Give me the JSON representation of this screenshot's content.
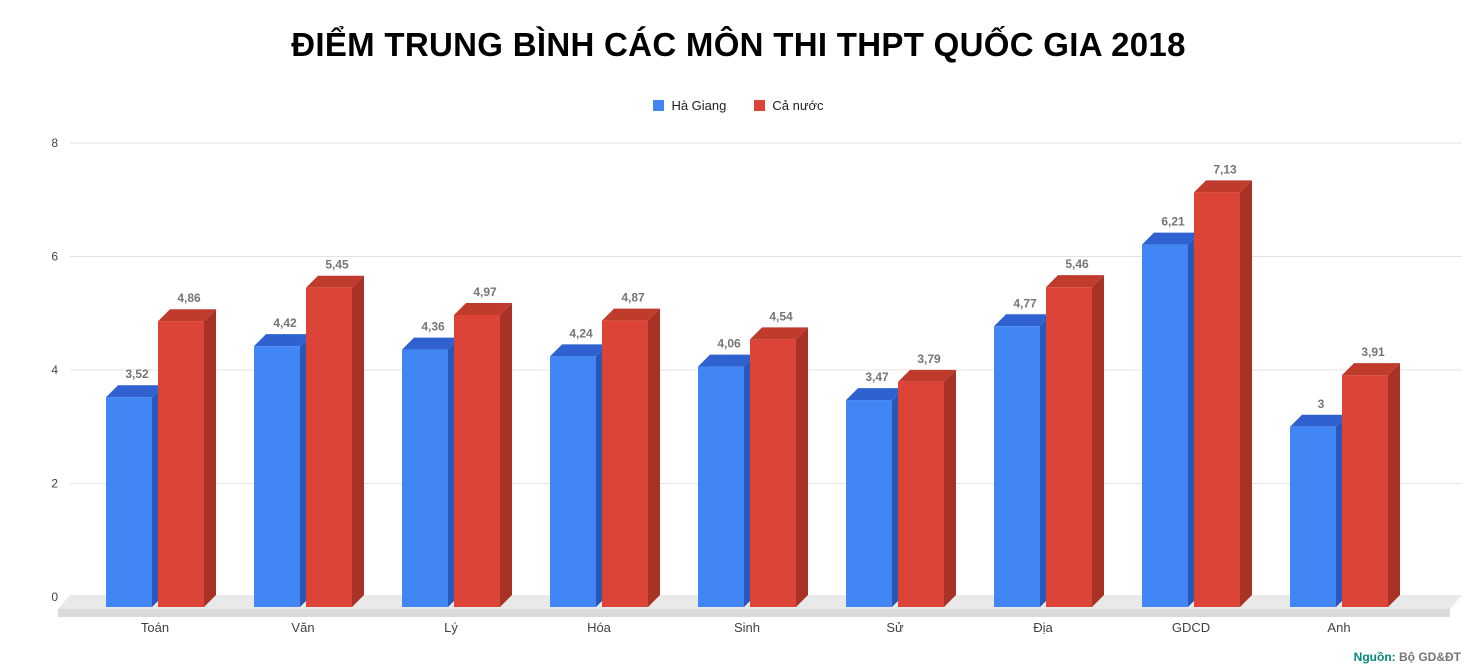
{
  "title": "ĐIỂM TRUNG BÌNH CÁC MÔN THI THPT QUỐC GIA 2018",
  "source": {
    "prefix": "Nguồn:",
    "text": "Bộ GD&ĐT"
  },
  "legend": [
    {
      "label": "Hà Giang",
      "color": "#4285f4"
    },
    {
      "label": "Cả nước",
      "color": "#db4437"
    }
  ],
  "colors": {
    "blue_front": "#4285f4",
    "blue_side": "#2a57b5",
    "blue_top": "#2f62d0",
    "red_front": "#db4437",
    "red_side": "#a93226",
    "red_top": "#bf3b2c",
    "gridline": "#e3e3e3",
    "floor_top": "#e9e9e9",
    "floor_front": "#dadada"
  },
  "chart_data": {
    "type": "bar",
    "title": "ĐIỂM TRUNG BÌNH CÁC MÔN THI THPT QUỐC GIA 2018",
    "xlabel": "",
    "ylabel": "",
    "ylim": [
      0,
      8
    ],
    "yticks": [
      0,
      2,
      4,
      6,
      8
    ],
    "grid": true,
    "legend_position": "top",
    "style_3d": true,
    "categories": [
      "Toán",
      "Văn",
      "Lý",
      "Hóa",
      "Sinh",
      "Sử",
      "Địa",
      "GDCD",
      "Anh"
    ],
    "series": [
      {
        "name": "Hà Giang",
        "color": "#4285f4",
        "side_color": "#2a57b5",
        "top_color": "#2f62d0",
        "values": [
          3.52,
          4.42,
          4.36,
          4.24,
          4.06,
          3.47,
          4.77,
          6.21,
          3
        ],
        "value_labels": [
          "3,52",
          "4,42",
          "4,36",
          "4,24",
          "4,06",
          "3,47",
          "4,77",
          "6,21",
          "3"
        ]
      },
      {
        "name": "Cả nước",
        "color": "#db4437",
        "side_color": "#a93226",
        "top_color": "#bf3b2c",
        "values": [
          4.86,
          5.45,
          4.97,
          4.87,
          4.54,
          3.79,
          5.46,
          7.13,
          3.91
        ],
        "value_labels": [
          "4,86",
          "5,45",
          "4,97",
          "4,87",
          "4,54",
          "3,79",
          "5,46",
          "7,13",
          "3,91"
        ]
      }
    ]
  }
}
